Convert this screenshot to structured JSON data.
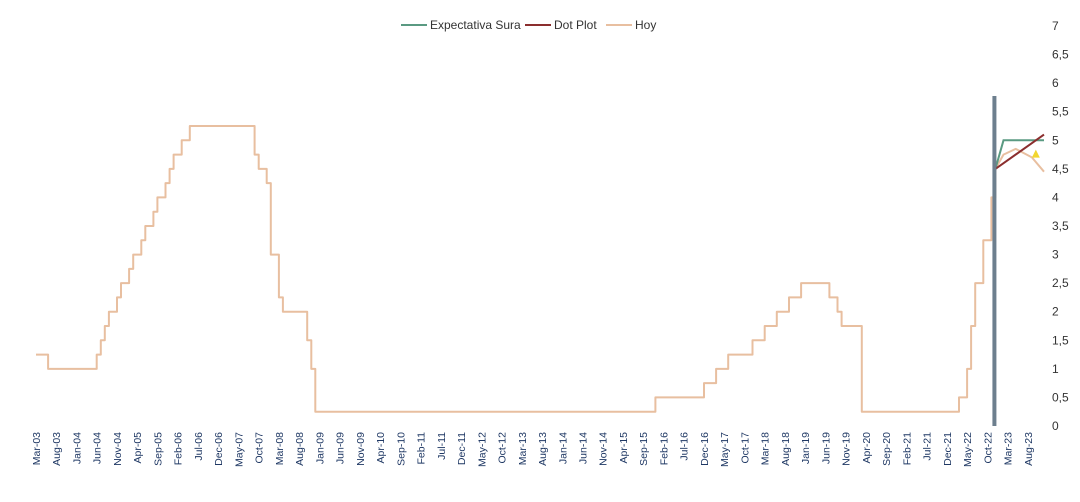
{
  "chart_data": {
    "type": "line",
    "title": "",
    "xlabel": "",
    "ylabel": "",
    "ylim": [
      0,
      7
    ],
    "y_ticks": [
      "0",
      "0,5",
      "1",
      "1,5",
      "2",
      "2,5",
      "3",
      "3,5",
      "4",
      "4,5",
      "5",
      "5,5",
      "6",
      "6,5",
      "7"
    ],
    "y_axis_position": "right",
    "grid": false,
    "legend_position": "top-center",
    "x_start": "2003-03",
    "x_end": "2023-12",
    "x_ticks": [
      "Mar-03",
      "Aug-03",
      "Jan-04",
      "Jun-04",
      "Nov-04",
      "Apr-05",
      "Sep-05",
      "Feb-06",
      "Jul-06",
      "Dec-06",
      "May-07",
      "Oct-07",
      "Mar-08",
      "Aug-08",
      "Jan-09",
      "Jun-09",
      "Nov-09",
      "Apr-10",
      "Sep-10",
      "Feb-11",
      "Jul-11",
      "Dec-11",
      "May-12",
      "Oct-12",
      "Mar-13",
      "Aug-13",
      "Jan-14",
      "Jun-14",
      "Nov-14",
      "Apr-15",
      "Sep-15",
      "Feb-16",
      "Jul-16",
      "Dec-16",
      "May-17",
      "Oct-17",
      "Mar-18",
      "Aug-18",
      "Jan-19",
      "Jun-19",
      "Nov-19",
      "Apr-20",
      "Sep-20",
      "Feb-21",
      "Jul-21",
      "Dec-21",
      "May-22",
      "Oct-22",
      "Mar-23",
      "Aug-23"
    ],
    "vertical_marker": {
      "x": "2022-12",
      "color": "#6d7f8e"
    },
    "series": [
      {
        "name": "Expectativa Sura",
        "color": "#5a9a82",
        "points": [
          [
            "2022-12",
            4.5
          ],
          [
            "2023-02",
            5.0
          ],
          [
            "2023-12",
            5.0
          ]
        ]
      },
      {
        "name": "Dot Plot",
        "color": "#8b2e2e",
        "points": [
          [
            "2022-12",
            4.5
          ],
          [
            "2023-12",
            5.1
          ]
        ]
      },
      {
        "name": "Hoy",
        "color": "#e8bfa0",
        "steps": [
          [
            "2003-03",
            1.25
          ],
          [
            "2003-06",
            1.0
          ],
          [
            "2004-06",
            1.25
          ],
          [
            "2004-07",
            1.5
          ],
          [
            "2004-08",
            1.75
          ],
          [
            "2004-09",
            2.0
          ],
          [
            "2004-11",
            2.25
          ],
          [
            "2004-12",
            2.5
          ],
          [
            "2005-02",
            2.75
          ],
          [
            "2005-03",
            3.0
          ],
          [
            "2005-05",
            3.25
          ],
          [
            "2005-06",
            3.5
          ],
          [
            "2005-08",
            3.75
          ],
          [
            "2005-09",
            4.0
          ],
          [
            "2005-11",
            4.25
          ],
          [
            "2005-12",
            4.5
          ],
          [
            "2006-01",
            4.75
          ],
          [
            "2006-03",
            5.0
          ],
          [
            "2006-05",
            5.25
          ],
          [
            "2007-09",
            4.75
          ],
          [
            "2007-10",
            4.5
          ],
          [
            "2007-12",
            4.25
          ],
          [
            "2008-01",
            3.0
          ],
          [
            "2008-03",
            2.25
          ],
          [
            "2008-04",
            2.0
          ],
          [
            "2008-10",
            1.5
          ],
          [
            "2008-11",
            1.0
          ],
          [
            "2008-12",
            0.25
          ],
          [
            "2015-12",
            0.5
          ],
          [
            "2016-12",
            0.75
          ],
          [
            "2017-03",
            1.0
          ],
          [
            "2017-06",
            1.25
          ],
          [
            "2017-12",
            1.5
          ],
          [
            "2018-03",
            1.75
          ],
          [
            "2018-06",
            2.0
          ],
          [
            "2018-09",
            2.25
          ],
          [
            "2018-12",
            2.5
          ],
          [
            "2019-07",
            2.25
          ],
          [
            "2019-09",
            2.0
          ],
          [
            "2019-10",
            1.75
          ],
          [
            "2020-03",
            0.25
          ],
          [
            "2022-03",
            0.5
          ],
          [
            "2022-05",
            1.0
          ],
          [
            "2022-06",
            1.75
          ],
          [
            "2022-07",
            2.5
          ],
          [
            "2022-09",
            3.25
          ],
          [
            "2022-11",
            4.0
          ],
          [
            "2022-12",
            4.5
          ]
        ],
        "points": [
          [
            "2023-02",
            4.75
          ],
          [
            "2023-05",
            4.85
          ],
          [
            "2023-09",
            4.7
          ],
          [
            "2023-12",
            4.45
          ]
        ]
      }
    ],
    "annotations": [
      {
        "type": "marker",
        "shape": "triangle",
        "color": "#f2d62e",
        "x": "2023-09",
        "y": 4.75
      }
    ]
  }
}
